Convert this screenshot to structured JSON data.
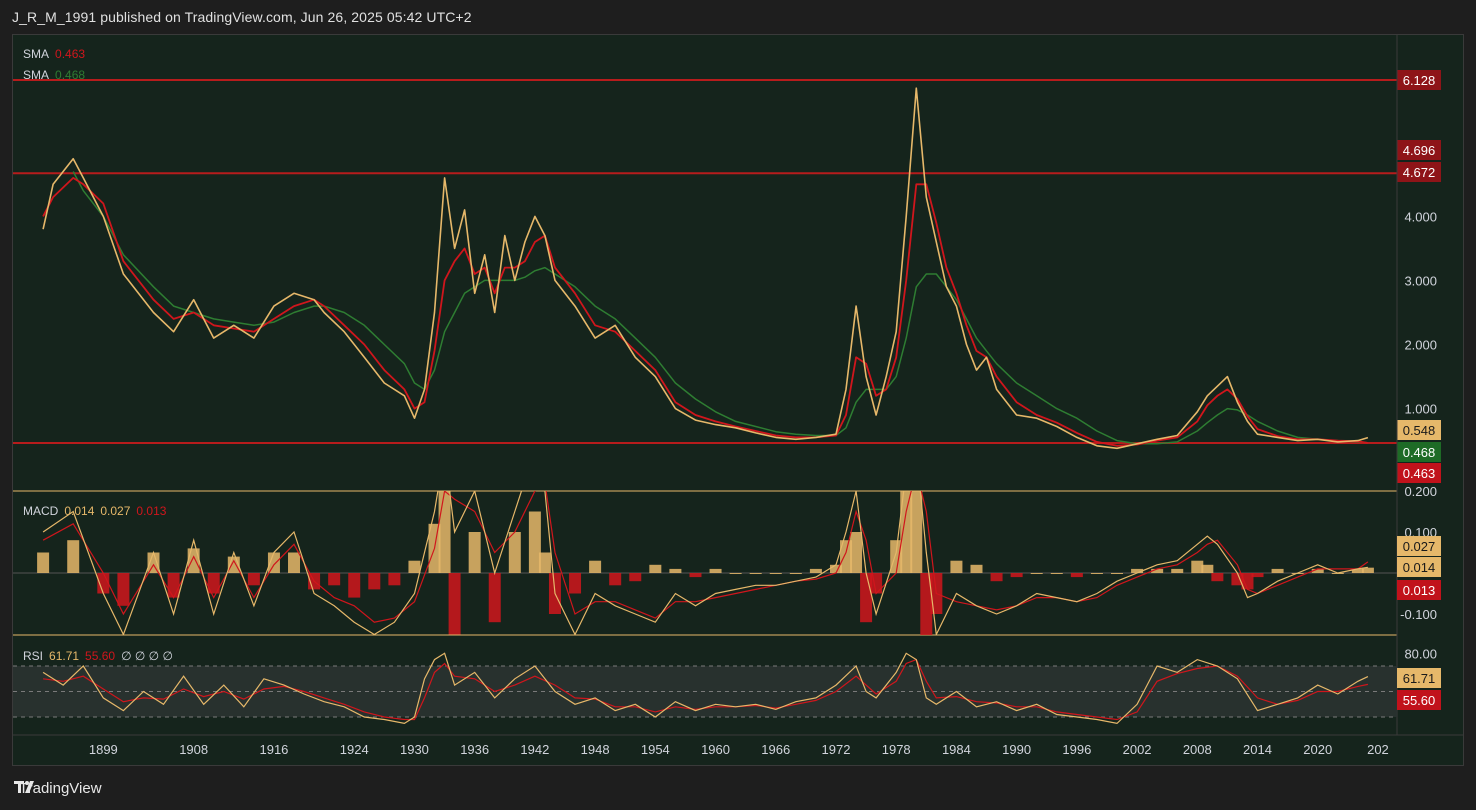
{
  "header": {
    "published_text": "J_R_M_1991 published on TradingView.com, Jun 26, 2025 05:42 UTC+2"
  },
  "footer": {
    "brand": "TradingView"
  },
  "colors": {
    "price": "#e6b86a",
    "sma_fast": "#d0161c",
    "sma_slow": "#2e7d32",
    "hline": "#b71c1c",
    "bg": "#15241c",
    "grid": "#e6b86a"
  },
  "legends": {
    "sma1_label": "SMA",
    "sma1_value": "0.463",
    "sma2_label": "SMA",
    "sma2_value": "0.468",
    "macd_label": "MACD",
    "macd_v1": "0.014",
    "macd_v2": "0.027",
    "macd_v3": "0.013",
    "rsi_label": "RSI",
    "rsi_v1": "61.71",
    "rsi_v2": "55.60",
    "rsi_nulls": "∅ ∅ ∅ ∅"
  },
  "chart_data": [
    {
      "type": "line",
      "panel": "price",
      "x_tick_labels": [
        "1899",
        "1908",
        "1916",
        "1924",
        "1930",
        "1936",
        "1942",
        "1948",
        "1954",
        "1960",
        "1966",
        "1972",
        "1978",
        "1984",
        "1990",
        "1996",
        "2002",
        "2008",
        "2014",
        "2020",
        "202"
      ],
      "x": [
        1893,
        1894,
        1896,
        1897,
        1899,
        1901,
        1904,
        1906,
        1908,
        1910,
        1912,
        1914,
        1916,
        1918,
        1920,
        1921,
        1923,
        1925,
        1927,
        1929,
        1930,
        1931,
        1932,
        1933,
        1934,
        1935,
        1936,
        1937,
        1938,
        1939,
        1940,
        1941,
        1942,
        1943,
        1944,
        1946,
        1948,
        1950,
        1952,
        1954,
        1956,
        1958,
        1960,
        1962,
        1964,
        1966,
        1968,
        1970,
        1972,
        1973,
        1974,
        1975,
        1976,
        1977,
        1978,
        1979,
        1980,
        1981,
        1982,
        1983,
        1984,
        1985,
        1986,
        1987,
        1988,
        1990,
        1992,
        1994,
        1996,
        1998,
        2000,
        2002,
        2004,
        2006,
        2008,
        2009,
        2010,
        2011,
        2012,
        2013,
        2014,
        2016,
        2018,
        2020,
        2022,
        2024,
        2025
      ],
      "price": [
        3.8,
        4.5,
        4.9,
        4.6,
        4.0,
        3.1,
        2.5,
        2.2,
        2.7,
        2.1,
        2.3,
        2.1,
        2.6,
        2.8,
        2.7,
        2.5,
        2.2,
        1.8,
        1.4,
        1.2,
        0.85,
        1.3,
        2.5,
        4.6,
        3.5,
        4.1,
        2.8,
        3.4,
        2.5,
        3.7,
        3.0,
        3.6,
        4.0,
        3.7,
        3.0,
        2.6,
        2.1,
        2.3,
        1.8,
        1.5,
        1.0,
        0.82,
        0.75,
        0.7,
        0.62,
        0.55,
        0.52,
        0.55,
        0.6,
        1.3,
        2.6,
        1.5,
        0.9,
        1.5,
        2.2,
        4.0,
        6.0,
        4.3,
        3.6,
        2.9,
        2.6,
        2.0,
        1.6,
        1.8,
        1.3,
        0.9,
        0.85,
        0.72,
        0.55,
        0.42,
        0.38,
        0.45,
        0.52,
        0.58,
        0.95,
        1.2,
        1.35,
        1.5,
        1.1,
        0.8,
        0.6,
        0.55,
        0.5,
        0.52,
        0.48,
        0.5,
        0.548
      ],
      "sma_fast": [
        4.0,
        4.3,
        4.6,
        4.5,
        4.2,
        3.3,
        2.7,
        2.4,
        2.5,
        2.3,
        2.25,
        2.2,
        2.4,
        2.6,
        2.7,
        2.6,
        2.3,
        2.0,
        1.6,
        1.3,
        1.0,
        1.1,
        1.9,
        3.0,
        3.3,
        3.5,
        3.1,
        3.2,
        2.8,
        3.2,
        3.2,
        3.3,
        3.6,
        3.7,
        3.2,
        2.8,
        2.3,
        2.2,
        1.9,
        1.6,
        1.1,
        0.9,
        0.8,
        0.72,
        0.65,
        0.58,
        0.55,
        0.55,
        0.58,
        0.9,
        1.8,
        1.7,
        1.2,
        1.3,
        1.8,
        3.0,
        4.5,
        4.5,
        3.9,
        3.2,
        2.8,
        2.3,
        1.9,
        1.8,
        1.5,
        1.1,
        0.9,
        0.78,
        0.62,
        0.48,
        0.42,
        0.44,
        0.5,
        0.55,
        0.8,
        1.05,
        1.2,
        1.3,
        1.15,
        0.88,
        0.68,
        0.57,
        0.52,
        0.52,
        0.5,
        0.49,
        0.463
      ],
      "sma_slow": [
        null,
        null,
        4.7,
        4.4,
        4.0,
        3.4,
        2.9,
        2.6,
        2.5,
        2.4,
        2.35,
        2.3,
        2.35,
        2.5,
        2.6,
        2.6,
        2.5,
        2.3,
        2.0,
        1.7,
        1.4,
        1.3,
        1.6,
        2.2,
        2.5,
        2.8,
        2.9,
        3.0,
        3.0,
        3.0,
        3.0,
        3.05,
        3.15,
        3.2,
        3.1,
        2.9,
        2.6,
        2.4,
        2.1,
        1.8,
        1.4,
        1.15,
        0.95,
        0.8,
        0.72,
        0.64,
        0.6,
        0.58,
        0.58,
        0.7,
        1.1,
        1.3,
        1.3,
        1.3,
        1.5,
        2.1,
        2.9,
        3.1,
        3.1,
        2.9,
        2.7,
        2.4,
        2.1,
        1.9,
        1.7,
        1.4,
        1.2,
        1.0,
        0.85,
        0.65,
        0.5,
        0.45,
        0.45,
        0.48,
        0.65,
        0.78,
        0.9,
        1.0,
        0.98,
        0.9,
        0.8,
        0.65,
        0.55,
        0.52,
        0.5,
        0.48,
        0.468
      ],
      "y_tick_labels": [
        "1.000",
        "2.000",
        "3.000",
        "4.000"
      ],
      "y_ticks": [
        1,
        2,
        3,
        4
      ],
      "horizontal_lines": [
        6.128,
        4.672,
        0.463
      ],
      "price_badges": [
        {
          "text": "6.128",
          "role": "level"
        },
        {
          "text": "4.696",
          "role": "level"
        },
        {
          "text": "4.672",
          "role": "level"
        },
        {
          "text": "0.548",
          "role": "price"
        },
        {
          "text": "0.468",
          "role": "sma_slow"
        },
        {
          "text": "0.463",
          "role": "sma_fast"
        }
      ]
    },
    {
      "type": "bar",
      "panel": "macd",
      "y_tick_labels": [
        "0.200",
        "0.100",
        "-0.100"
      ],
      "y_ticks": [
        0.2,
        0.1,
        -0.1
      ],
      "price_badges": [
        {
          "text": "0.027",
          "role": "signal"
        },
        {
          "text": "0.014",
          "role": "macd"
        },
        {
          "text": "0.013",
          "role": "hist"
        }
      ],
      "x": [
        1893,
        1896,
        1899,
        1901,
        1904,
        1906,
        1908,
        1910,
        1912,
        1914,
        1916,
        1918,
        1920,
        1922,
        1924,
        1926,
        1928,
        1930,
        1932,
        1933,
        1934,
        1936,
        1938,
        1940,
        1942,
        1943,
        1944,
        1946,
        1948,
        1950,
        1952,
        1954,
        1956,
        1958,
        1960,
        1962,
        1964,
        1966,
        1968,
        1970,
        1972,
        1973,
        1974,
        1975,
        1976,
        1978,
        1979,
        1980,
        1981,
        1982,
        1984,
        1986,
        1988,
        1990,
        1992,
        1994,
        1996,
        1998,
        2000,
        2002,
        2004,
        2006,
        2008,
        2009,
        2010,
        2012,
        2013,
        2014,
        2016,
        2018,
        2020,
        2022,
        2024,
        2025
      ],
      "hist": [
        0.05,
        0.08,
        -0.05,
        -0.08,
        0.05,
        -0.06,
        0.06,
        -0.05,
        0.04,
        -0.03,
        0.05,
        0.05,
        -0.04,
        -0.03,
        -0.06,
        -0.04,
        -0.03,
        0.03,
        0.12,
        0.25,
        -0.15,
        0.1,
        -0.12,
        0.1,
        0.15,
        0.05,
        -0.1,
        -0.05,
        0.03,
        -0.03,
        -0.02,
        0.02,
        0.01,
        -0.01,
        0.01,
        0.0,
        0.0,
        0.0,
        0.0,
        0.01,
        0.02,
        0.08,
        0.1,
        -0.12,
        -0.05,
        0.08,
        0.2,
        0.25,
        -0.2,
        -0.1,
        0.03,
        0.02,
        -0.02,
        -0.01,
        0.0,
        0.0,
        -0.01,
        0.0,
        0.0,
        0.01,
        0.01,
        0.01,
        0.03,
        0.02,
        -0.02,
        -0.03,
        -0.04,
        -0.01,
        0.01,
        0.0,
        0.01,
        0.0,
        0.01,
        0.013
      ],
      "macd": [
        0.1,
        0.15,
        -0.05,
        -0.15,
        0.05,
        -0.1,
        0.08,
        -0.1,
        0.05,
        -0.08,
        0.05,
        0.1,
        -0.05,
        -0.08,
        -0.12,
        -0.15,
        -0.12,
        -0.05,
        0.15,
        0.3,
        0.1,
        0.2,
        0.0,
        0.15,
        0.3,
        0.2,
        -0.05,
        -0.15,
        -0.05,
        -0.08,
        -0.1,
        -0.12,
        -0.05,
        -0.08,
        -0.05,
        -0.04,
        -0.03,
        -0.03,
        -0.02,
        -0.01,
        0.02,
        0.1,
        0.2,
        0.0,
        -0.1,
        0.05,
        0.25,
        0.3,
        0.05,
        -0.15,
        -0.05,
        -0.08,
        -0.1,
        -0.08,
        -0.05,
        -0.06,
        -0.07,
        -0.05,
        -0.02,
        0.0,
        0.02,
        0.03,
        0.07,
        0.09,
        0.07,
        0.0,
        -0.06,
        -0.05,
        -0.02,
        0.0,
        0.02,
        0.0,
        0.01,
        0.014
      ],
      "signal": [
        0.08,
        0.12,
        0.0,
        -0.1,
        0.02,
        -0.06,
        0.04,
        -0.06,
        0.03,
        -0.06,
        0.02,
        0.07,
        -0.02,
        -0.06,
        -0.08,
        -0.12,
        -0.11,
        -0.07,
        0.06,
        0.2,
        0.18,
        0.15,
        0.05,
        0.1,
        0.2,
        0.22,
        0.05,
        -0.1,
        -0.07,
        -0.07,
        -0.09,
        -0.11,
        -0.07,
        -0.07,
        -0.06,
        -0.05,
        -0.04,
        -0.03,
        -0.02,
        -0.015,
        0.0,
        0.05,
        0.15,
        0.08,
        -0.05,
        0.0,
        0.15,
        0.25,
        0.15,
        -0.05,
        -0.07,
        -0.08,
        -0.09,
        -0.08,
        -0.06,
        -0.06,
        -0.07,
        -0.06,
        -0.03,
        -0.01,
        0.01,
        0.02,
        0.05,
        0.07,
        0.08,
        0.02,
        -0.04,
        -0.05,
        -0.03,
        -0.01,
        0.01,
        0.01,
        0.01,
        0.027
      ]
    },
    {
      "type": "line",
      "panel": "rsi",
      "y_tick_labels": [
        "80.00"
      ],
      "y_ticks": [
        80
      ],
      "bands": [
        70,
        50,
        30
      ],
      "price_badges": [
        {
          "text": "61.71",
          "role": "rsi"
        },
        {
          "text": "55.60",
          "role": "rsi_ma"
        }
      ],
      "x": [
        1893,
        1895,
        1897,
        1899,
        1901,
        1903,
        1905,
        1907,
        1909,
        1911,
        1913,
        1915,
        1917,
        1919,
        1921,
        1923,
        1925,
        1927,
        1929,
        1930,
        1931,
        1932,
        1933,
        1934,
        1936,
        1938,
        1940,
        1942,
        1944,
        1946,
        1948,
        1950,
        1952,
        1954,
        1956,
        1958,
        1960,
        1962,
        1964,
        1966,
        1968,
        1970,
        1972,
        1974,
        1975,
        1976,
        1978,
        1979,
        1980,
        1981,
        1982,
        1984,
        1986,
        1988,
        1990,
        1992,
        1994,
        1996,
        1998,
        2000,
        2002,
        2004,
        2006,
        2008,
        2010,
        2012,
        2014,
        2016,
        2018,
        2020,
        2022,
        2024,
        2025
      ],
      "rsi": [
        65,
        55,
        70,
        45,
        35,
        50,
        40,
        62,
        40,
        55,
        38,
        60,
        55,
        48,
        42,
        38,
        30,
        28,
        25,
        30,
        60,
        75,
        80,
        55,
        65,
        45,
        60,
        70,
        50,
        40,
        45,
        35,
        40,
        30,
        42,
        35,
        40,
        38,
        40,
        36,
        42,
        45,
        55,
        70,
        50,
        45,
        65,
        80,
        75,
        45,
        40,
        50,
        38,
        42,
        35,
        40,
        32,
        30,
        28,
        25,
        40,
        70,
        65,
        75,
        70,
        60,
        35,
        40,
        45,
        55,
        48,
        58,
        61.71
      ],
      "rsi_ma": [
        60,
        58,
        62,
        52,
        42,
        45,
        44,
        52,
        46,
        50,
        44,
        52,
        54,
        50,
        45,
        40,
        34,
        30,
        28,
        28,
        45,
        65,
        72,
        62,
        60,
        50,
        55,
        62,
        55,
        45,
        44,
        38,
        38,
        34,
        38,
        36,
        38,
        38,
        39,
        37,
        40,
        43,
        50,
        62,
        55,
        48,
        58,
        72,
        75,
        58,
        45,
        46,
        42,
        41,
        38,
        38,
        34,
        32,
        30,
        28,
        34,
        58,
        64,
        68,
        70,
        62,
        45,
        40,
        43,
        50,
        50,
        54,
        55.6
      ]
    }
  ]
}
